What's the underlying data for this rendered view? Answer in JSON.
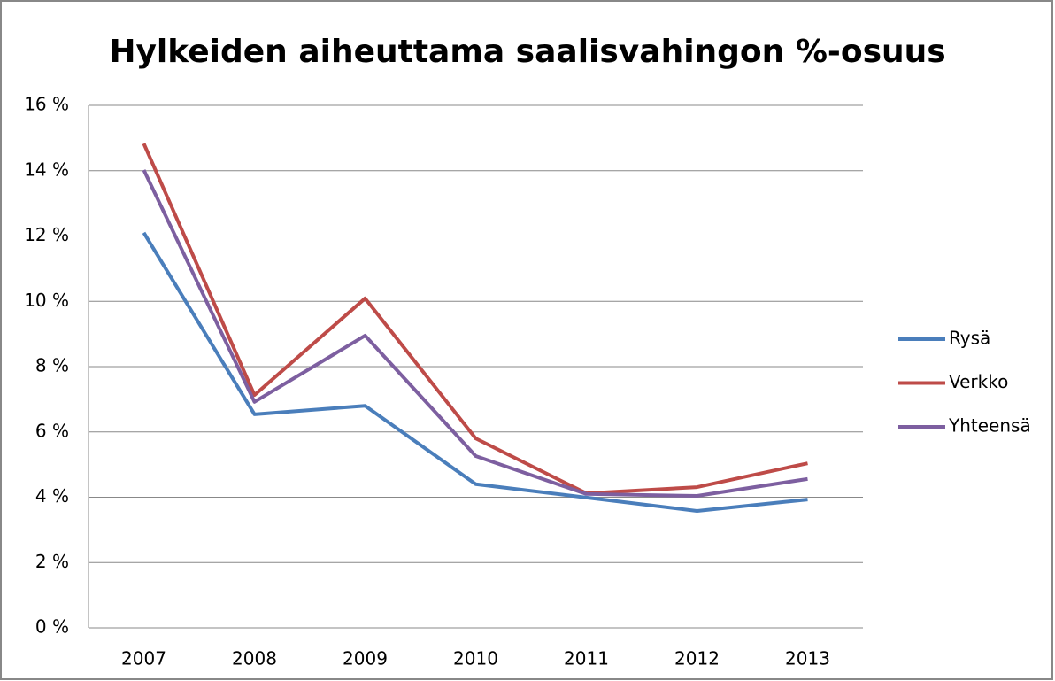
{
  "chart_data": {
    "type": "line",
    "title": "Hylkeiden aiheuttama saalisvahingon %-osuus",
    "categories": [
      "2007",
      "2008",
      "2009",
      "2010",
      "2011",
      "2012",
      "2013"
    ],
    "series": [
      {
        "name": "Rysä",
        "color": "#4a7ebb",
        "values": [
          12.1,
          6.54,
          6.8,
          4.4,
          3.99,
          3.58,
          3.93
        ]
      },
      {
        "name": "Verkko",
        "color": "#be4b48",
        "values": [
          14.83,
          7.13,
          10.09,
          5.8,
          4.12,
          4.31,
          5.04
        ]
      },
      {
        "name": "Yhteensä",
        "color": "#7d5fa0",
        "values": [
          14.02,
          6.92,
          8.95,
          5.26,
          4.1,
          4.04,
          4.56
        ]
      }
    ],
    "ylim": [
      0,
      16
    ],
    "yticks": [
      {
        "value": 0,
        "label": "0 %"
      },
      {
        "value": 2,
        "label": "2 %"
      },
      {
        "value": 4,
        "label": "4 %"
      },
      {
        "value": 6,
        "label": "6 %"
      },
      {
        "value": 8,
        "label": "8 %"
      },
      {
        "value": 10,
        "label": "10 %"
      },
      {
        "value": 12,
        "label": "12 %"
      },
      {
        "value": 14,
        "label": "14 %"
      },
      {
        "value": 16,
        "label": "16 %"
      }
    ],
    "grid": true,
    "legend": "right"
  }
}
